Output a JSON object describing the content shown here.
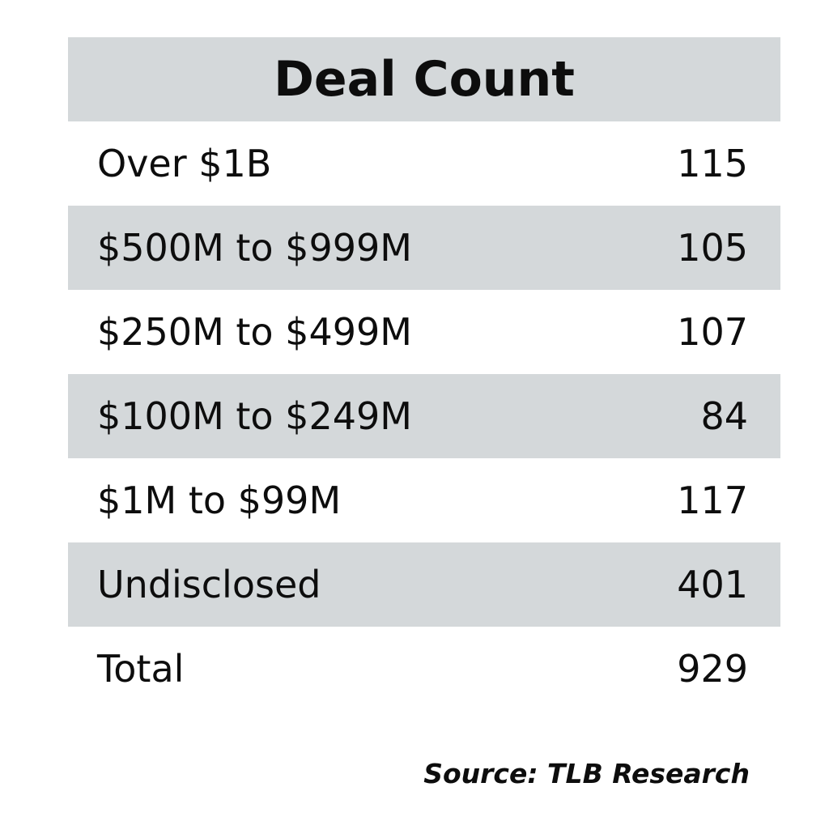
{
  "chart_data": {
    "type": "table",
    "title": "Deal Count",
    "columns": [
      "",
      ""
    ],
    "rows": [
      {
        "label": "Over $1B",
        "value": "115"
      },
      {
        "label": "$500M to $999M",
        "value": "105"
      },
      {
        "label": "$250M to $499M",
        "value": "107"
      },
      {
        "label": "$100M to $249M",
        "value": "84"
      },
      {
        "label": "$1M to $99M",
        "value": "117"
      },
      {
        "label": "Undisclosed",
        "value": "401"
      },
      {
        "label": "Total",
        "value": "929"
      }
    ],
    "source": "Source: TLB Research"
  },
  "colors": {
    "band": "#d4d8da",
    "background": "#ffffff",
    "text": "#0d0d0d"
  }
}
